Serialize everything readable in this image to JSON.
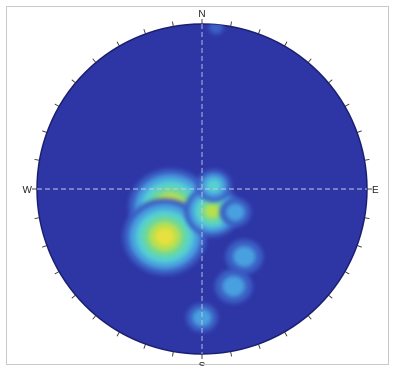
{
  "chart_data": {
    "type": "heatmap",
    "subtype": "stereonet-pole-density",
    "title": "",
    "direction_labels": {
      "north": "N",
      "south": "S",
      "east": "E",
      "west": "W"
    },
    "grid": true,
    "tick_interval_deg": 10,
    "colors": {
      "background": "#2e36a6",
      "rim": "#1a1f70",
      "gridline": "#c8c8e8",
      "density_scale": [
        "#2e36a6",
        "#3a5fc4",
        "#4aa0e0",
        "#55d0d0",
        "#6fd890",
        "#b8e04a",
        "#e8e040"
      ]
    },
    "density_clusters": [
      {
        "trend_deg": 240,
        "plunge_deg": 72,
        "level": 6,
        "spread_deg": 5
      },
      {
        "trend_deg": 218,
        "plunge_deg": 60,
        "level": 6,
        "spread_deg": 5
      },
      {
        "trend_deg": 155,
        "plunge_deg": 78,
        "level": 5,
        "spread_deg": 4
      },
      {
        "trend_deg": 75,
        "plunge_deg": 84,
        "level": 3,
        "spread_deg": 4
      },
      {
        "trend_deg": 125,
        "plunge_deg": 70,
        "level": 2,
        "spread_deg": 5
      },
      {
        "trend_deg": 148,
        "plunge_deg": 50,
        "level": 2,
        "spread_deg": 6
      },
      {
        "trend_deg": 162,
        "plunge_deg": 38,
        "level": 2,
        "spread_deg": 6
      },
      {
        "trend_deg": 180,
        "plunge_deg": 23,
        "level": 2,
        "spread_deg": 5
      },
      {
        "trend_deg": 5,
        "plunge_deg": 2,
        "level": 1,
        "spread_deg": 4
      }
    ]
  }
}
